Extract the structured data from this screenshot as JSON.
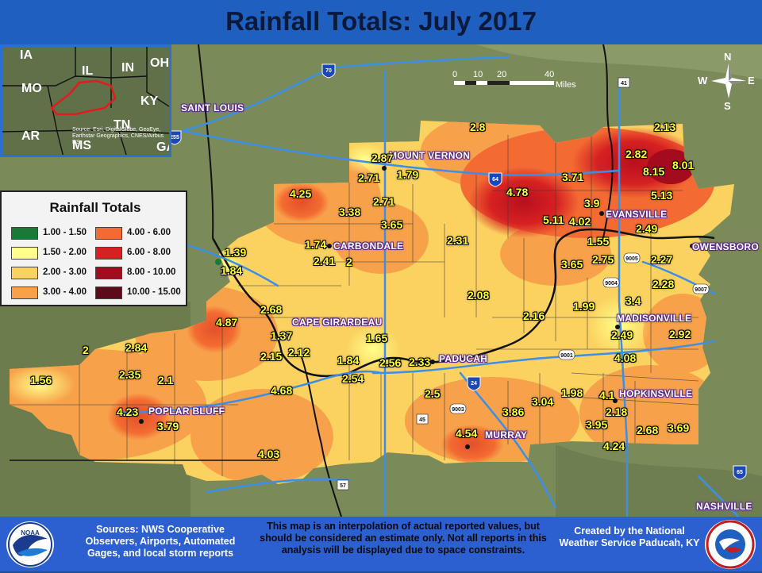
{
  "title": "Rainfall Totals: July 2017",
  "inset": {
    "states": [
      "IA",
      "IL",
      "IN",
      "OH",
      "MO",
      "KY",
      "AR",
      "TN",
      "MS",
      "GA"
    ],
    "source": "Source: Esri, DigitalGlobe, GeoEye, Earthstar Geographics, CNES/Airbus DS"
  },
  "legend": {
    "title": "Rainfall Totals",
    "items": [
      {
        "label": "1.00 - 1.50",
        "color": "#1a7a35"
      },
      {
        "label": "1.50 - 2.00",
        "color": "#ffff8a"
      },
      {
        "label": "2.00 - 3.00",
        "color": "#fbd15f"
      },
      {
        "label": "3.00 - 4.00",
        "color": "#f7a24a"
      },
      {
        "label": "4.00 - 6.00",
        "color": "#f36b32"
      },
      {
        "label": "6.00 - 8.00",
        "color": "#d62122"
      },
      {
        "label": "8.00 - 10.00",
        "color": "#a50b1e"
      },
      {
        "label": "10.00 - 15.00",
        "color": "#5e0a1a"
      }
    ]
  },
  "scale": {
    "ticks": [
      "0",
      "10",
      "20",
      "40"
    ],
    "unit": "Miles"
  },
  "compass": {
    "n": "N",
    "s": "S",
    "e": "E",
    "w": "W"
  },
  "shields": [
    "70",
    "64",
    "41",
    "255",
    "24",
    "57",
    "45",
    "55",
    "65",
    "9005",
    "9004",
    "9007",
    "9001",
    "9003",
    "69"
  ],
  "cities": [
    "SAINT LOUIS",
    "MOUNT VERNON",
    "CARBONDALE",
    "CAPE GIRARDEAU",
    "PADUCAH",
    "POPLAR BLUFF",
    "MURRAY",
    "EVANSVILLE",
    "OWENSBORO",
    "MADISONVILLE",
    "HOPKINSVILLE",
    "NASHVILLE"
  ],
  "values": [
    "2.8",
    "2.13",
    "2.87",
    "2.82",
    "8.15",
    "8.01",
    "2.71",
    "1.79",
    "3.71",
    "4.25",
    "4.78",
    "3.9",
    "5.13",
    "3.38",
    "2.71",
    "5.11",
    "4.02",
    "2.49",
    "3.65",
    "1.74",
    "1.55",
    "1.39",
    "2.41",
    "2",
    "2.31",
    "3.65",
    "2.75",
    "2.27",
    "1.84",
    "2.28",
    "2.08",
    "2.68",
    "1.99",
    "3.4",
    "4.87",
    "2.16",
    "1.37",
    "1.65",
    "2.49",
    "2.92",
    "2",
    "2.84",
    "2.12",
    "2.15",
    "1.84",
    "2.56",
    "2.33",
    "4.08",
    "2.35",
    "2.1",
    "1.56",
    "2.54",
    "4.68",
    "2.5",
    "1.98",
    "4.1",
    "4.23",
    "3.86",
    "3.04",
    "2.18",
    "3.79",
    "3.95",
    "2.68",
    "3.69",
    "4.54",
    "4.24",
    "4.03"
  ],
  "footer": {
    "sources": "Sources: NWS Cooperative Observers, Airports, Automated Gages, and local storm reports",
    "disclaimer": "This map is an interpolation of actual reported values, but should be considered an estimate only. Not all reports in this analysis will be displayed due to space constraints.",
    "credit": "Created by the National Weather Service Paducah, KY",
    "noaa": "NOAA",
    "nws": "NATIONAL WEATHER SERVICE"
  },
  "colors": {
    "title_bar": "#1f5fbf",
    "footer": "#2c5fd0",
    "value_text": "#ffff33",
    "city_glow": "#6b2f9e"
  }
}
